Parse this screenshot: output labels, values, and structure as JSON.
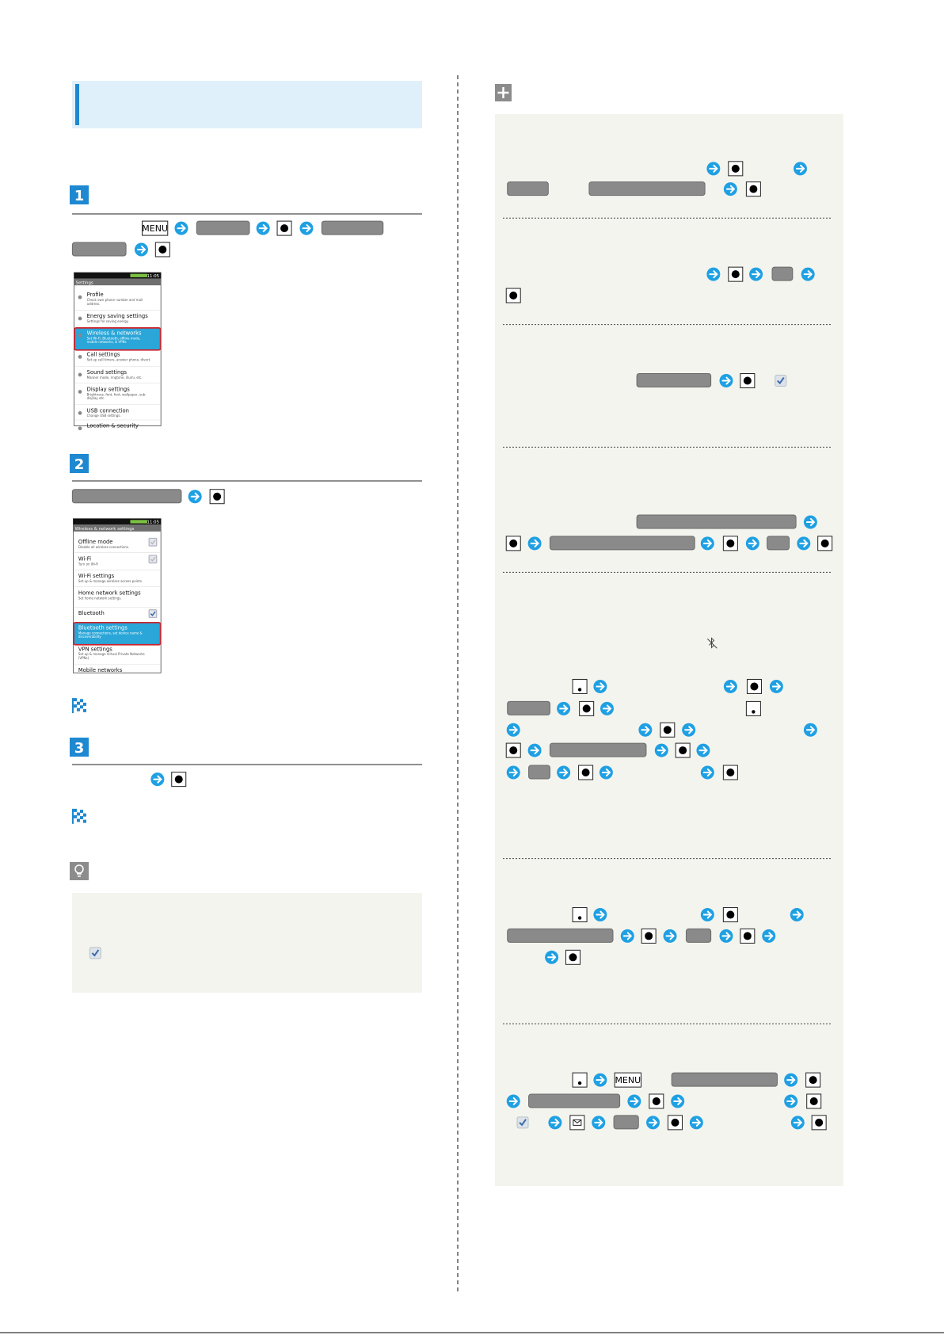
{
  "steps": [
    {
      "number": "1",
      "menu_key": "MENU"
    },
    {
      "number": "2"
    },
    {
      "number": "3"
    }
  ],
  "right": {
    "menu_key": "MENU"
  },
  "screens": [
    {
      "status_time": "11:05",
      "title": "Settings",
      "items": [
        {
          "label": "Profile",
          "desc": [
            "Check own phone number and mail",
            "address."
          ]
        },
        {
          "label": "Energy saving settings",
          "desc": [
            "Settings for saving energy."
          ]
        },
        {
          "label": "Wireless & networks",
          "desc": [
            "Set Wi-Fi, Bluetooth, offline mode,",
            "mobile networks, & VPNs"
          ],
          "highlighted": true
        },
        {
          "label": "Call settings",
          "desc": [
            "Set up call timers, answer phone, divert."
          ]
        },
        {
          "label": "Sound settings",
          "desc": [
            "Manner mode, ringtone, illumi, etc."
          ]
        },
        {
          "label": "Display settings",
          "desc": [
            "Brightness, font, font, wallpaper, sub-",
            "display etc."
          ]
        },
        {
          "label": "USB connection",
          "desc": [
            "Change USB settings."
          ]
        },
        {
          "label": "Location & security",
          "desc": []
        }
      ]
    },
    {
      "status_time": "11:05",
      "title": "Wireless & network settings",
      "items": [
        {
          "label": "Offline mode",
          "desc": [
            "Disable all wireless connections."
          ],
          "checkbox": "disabled"
        },
        {
          "label": "Wi-Fi",
          "desc": [
            "Turn on Wi-Fi"
          ],
          "checkbox": "disabled"
        },
        {
          "label": "Wi-Fi settings",
          "desc": [
            "Set up & manage wireless access points."
          ]
        },
        {
          "label": "Home network settings",
          "desc": [
            "Set home network settings."
          ]
        },
        {
          "label": "Bluetooth",
          "desc": [],
          "checkbox": "checked"
        },
        {
          "label": "Bluetooth settings",
          "desc": [
            "Manage connections, set device name &",
            "discoverability"
          ],
          "highlighted": true
        },
        {
          "label": "VPN settings",
          "desc": [
            "Set up & manage Virtual Private Networks",
            "(VPNs)"
          ]
        },
        {
          "label": "Mobile networks",
          "desc": []
        }
      ]
    }
  ]
}
